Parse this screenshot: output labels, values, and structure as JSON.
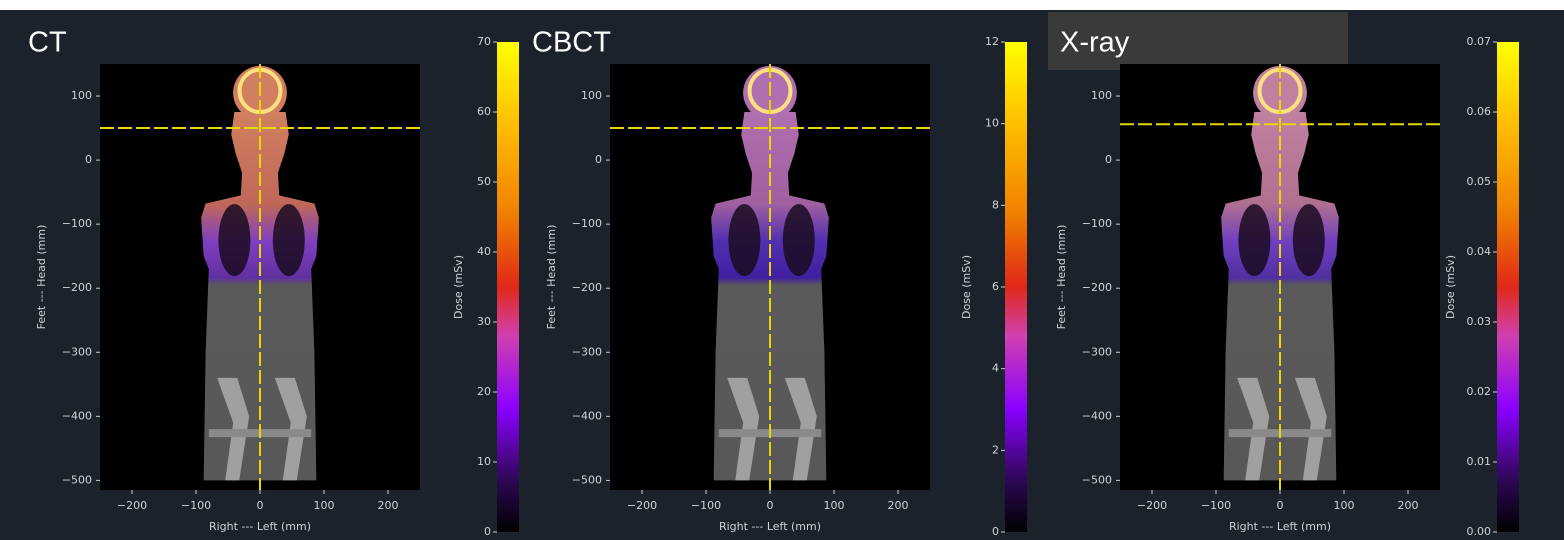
{
  "chart_data": [
    {
      "type": "image",
      "title": "CT",
      "xlabel": "Right --- Left (mm)",
      "ylabel": "Feet --- Head (mm)",
      "xlim": [
        -250,
        250
      ],
      "ylim": [
        -515,
        150
      ],
      "xticks": [
        {
          "value": -200,
          "label": "−200"
        },
        {
          "value": -100,
          "label": "−100"
        },
        0,
        100,
        200
      ],
      "yticks": [
        100,
        0,
        {
          "value": -100,
          "label": "−100"
        },
        {
          "value": -200,
          "label": "−200"
        },
        {
          "value": -300,
          "label": "−300"
        },
        {
          "value": -400,
          "label": "−400"
        },
        {
          "value": -500,
          "label": "−500"
        }
      ],
      "crosshair": {
        "x": 0,
        "y": 50
      },
      "colorbar": {
        "label": "Dose (mSv)",
        "lim": [
          0,
          70
        ],
        "ticks": [
          0,
          10,
          20,
          30,
          40,
          50,
          60,
          70
        ]
      }
    },
    {
      "type": "image",
      "title": "CBCT",
      "xlabel": "Right --- Left (mm)",
      "ylabel": "Feet --- Head (mm)",
      "xlim": [
        -250,
        250
      ],
      "ylim": [
        -515,
        150
      ],
      "xticks": [
        {
          "value": -200,
          "label": "−200"
        },
        {
          "value": -100,
          "label": "−100"
        },
        0,
        100,
        200
      ],
      "yticks": [
        100,
        0,
        {
          "value": -100,
          "label": "−100"
        },
        {
          "value": -200,
          "label": "−200"
        },
        {
          "value": -300,
          "label": "−300"
        },
        {
          "value": -400,
          "label": "−400"
        },
        {
          "value": -500,
          "label": "−500"
        }
      ],
      "crosshair": {
        "x": 0,
        "y": 50
      },
      "colorbar": {
        "label": "Dose (mSv)",
        "lim": [
          0,
          12
        ],
        "ticks": [
          0,
          2,
          4,
          6,
          8,
          10,
          12
        ]
      }
    },
    {
      "type": "image",
      "title": "X-ray",
      "xlabel": "Right --- Left (mm)",
      "ylabel": "Feet --- Head (mm)",
      "xlim": [
        -250,
        250
      ],
      "ylim": [
        -515,
        150
      ],
      "xticks": [
        {
          "value": -200,
          "label": "−200"
        },
        {
          "value": -100,
          "label": "−100"
        },
        0,
        100,
        200
      ],
      "yticks": [
        100,
        0,
        {
          "value": -100,
          "label": "−100"
        },
        {
          "value": -200,
          "label": "−200"
        },
        {
          "value": -300,
          "label": "−300"
        },
        {
          "value": -400,
          "label": "−400"
        },
        {
          "value": -500,
          "label": "−500"
        }
      ],
      "crosshair": {
        "x": 0,
        "y": 56
      },
      "colorbar": {
        "label": "Dose (mSv)",
        "lim": [
          0,
          0.07
        ],
        "ticks": [
          {
            "value": 0,
            "label": "0.00"
          },
          {
            "value": 0.01,
            "label": "0.01"
          },
          {
            "value": 0.02,
            "label": "0.02"
          },
          {
            "value": 0.03,
            "label": "0.03"
          },
          {
            "value": 0.04,
            "label": "0.04"
          },
          {
            "value": 0.05,
            "label": "0.05"
          },
          {
            "value": 0.06,
            "label": "0.06"
          },
          {
            "value": 0.07,
            "label": "0.07"
          }
        ]
      }
    }
  ]
}
